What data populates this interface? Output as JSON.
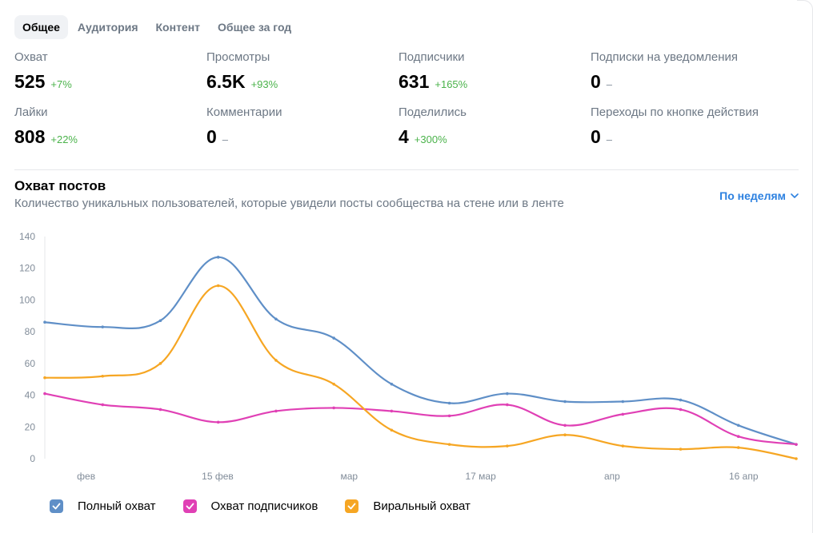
{
  "tabs": [
    "Общее",
    "Аудитория",
    "Контент",
    "Общее за год"
  ],
  "stats": [
    {
      "label": "Охват",
      "value": "525",
      "delta": "+7%",
      "trend": "up"
    },
    {
      "label": "Просмотры",
      "value": "6.5K",
      "delta": "+93%",
      "trend": "up"
    },
    {
      "label": "Подписчики",
      "value": "631",
      "delta": "+165%",
      "trend": "up"
    },
    {
      "label": "Подписки на уведомления",
      "value": "0",
      "delta": "–",
      "trend": "none"
    },
    {
      "label": "Лайки",
      "value": "808",
      "delta": "+22%",
      "trend": "up"
    },
    {
      "label": "Комментарии",
      "value": "0",
      "delta": "–",
      "trend": "none"
    },
    {
      "label": "Поделились",
      "value": "4",
      "delta": "+300%",
      "trend": "up"
    },
    {
      "label": "Переходы по кнопке действия",
      "value": "0",
      "delta": "–",
      "trend": "none"
    }
  ],
  "section": {
    "title": "Охват постов",
    "subtitle": "Количество уникальных пользователей, которые увидели посты сообщества на стене или в ленте",
    "period": "По неделям"
  },
  "colors": {
    "accent": "#2d81e0",
    "positive": "#4bb34b"
  },
  "chart_data": {
    "type": "line",
    "x_labels": [
      "фев",
      "15 фев",
      "мар",
      "17 мар",
      "апр",
      "16 апр"
    ],
    "ylim": [
      0,
      140
    ],
    "yticks": [
      0,
      20,
      40,
      60,
      80,
      100,
      120,
      140
    ],
    "grid": false,
    "legend_position": "bottom-left",
    "series": [
      {
        "name": "Полный охват",
        "color": "#5f8fc7",
        "values": [
          86,
          83,
          87,
          127,
          88,
          76,
          47,
          35,
          41,
          36,
          36,
          37,
          21,
          9
        ]
      },
      {
        "name": "Охват подписчиков",
        "color": "#e040b5",
        "values": [
          41,
          34,
          31,
          23,
          30,
          32,
          30,
          27,
          34,
          21,
          28,
          31,
          14,
          9
        ]
      },
      {
        "name": "Виральный охват",
        "color": "#f6a623",
        "values": [
          51,
          52,
          60,
          109,
          62,
          47,
          18,
          9,
          8,
          15,
          8,
          6,
          7,
          0
        ]
      }
    ]
  }
}
